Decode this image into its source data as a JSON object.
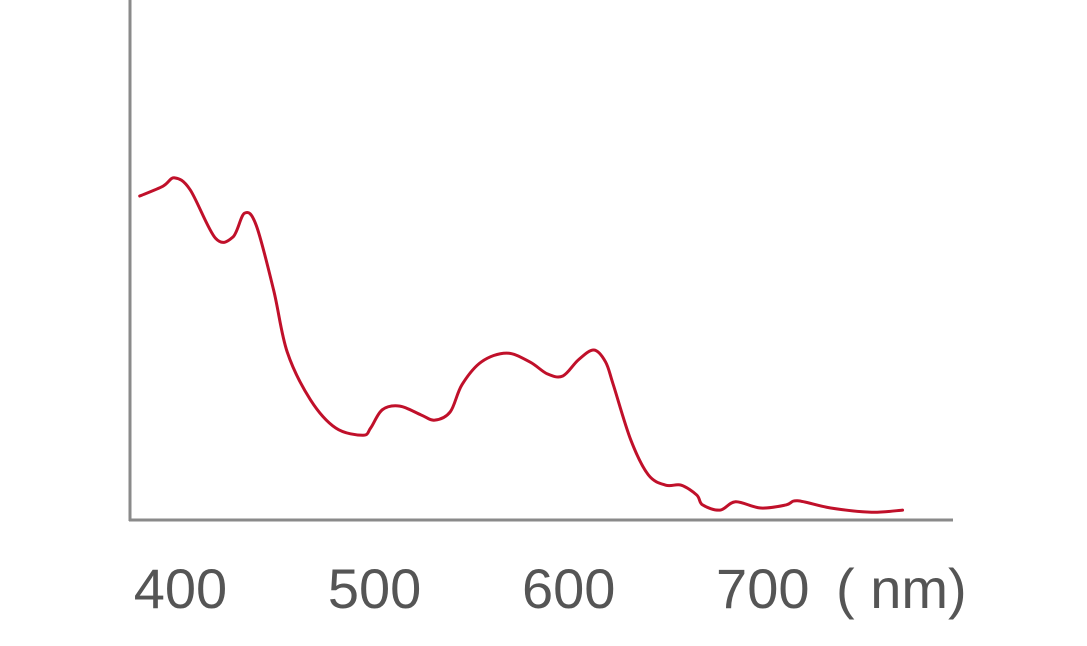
{
  "chart_data": {
    "type": "line",
    "title": "",
    "xlabel": "( nm)",
    "ylabel": "",
    "xlim": [
      374,
      798
    ],
    "ylim": [
      0,
      1
    ],
    "grid": false,
    "x_ticks": [
      400,
      500,
      600,
      700
    ],
    "x_tick_labels": [
      "400",
      "500",
      "600",
      "700"
    ],
    "colors": {
      "line": "#c0102a",
      "axis": "#8a8a8a",
      "text": "#555555"
    },
    "series": [
      {
        "x": [
          379,
          391,
          397,
          405,
          418,
          427,
          433,
          439,
          448,
          455,
          467,
          480,
          494,
          498,
          504,
          513,
          524,
          531,
          539,
          545,
          555,
          568,
          580,
          589,
          597,
          605,
          613,
          619,
          623,
          632,
          641,
          650,
          658,
          666,
          669,
          678,
          686,
          699,
          712,
          718,
          735,
          756,
          772
        ],
        "y": [
          0.623,
          0.642,
          0.658,
          0.635,
          0.542,
          0.544,
          0.59,
          0.567,
          0.442,
          0.323,
          0.231,
          0.177,
          0.163,
          0.177,
          0.212,
          0.219,
          0.202,
          0.192,
          0.208,
          0.26,
          0.304,
          0.321,
          0.304,
          0.281,
          0.277,
          0.308,
          0.327,
          0.304,
          0.26,
          0.154,
          0.087,
          0.067,
          0.067,
          0.048,
          0.029,
          0.019,
          0.035,
          0.023,
          0.029,
          0.037,
          0.023,
          0.015,
          0.019
        ]
      }
    ]
  }
}
